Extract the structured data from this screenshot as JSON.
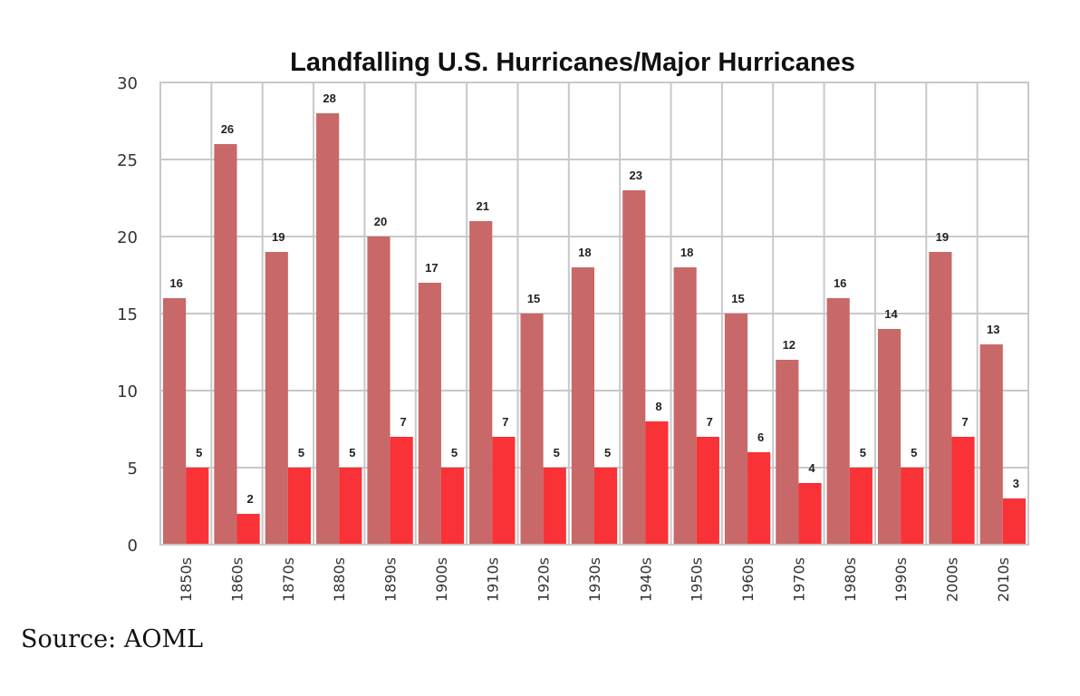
{
  "chart_data": {
    "type": "bar",
    "title": "Landfalling U.S. Hurricanes/Major Hurricanes",
    "xlabel": "",
    "ylabel": "",
    "ylim": [
      0,
      30
    ],
    "yticks": [
      0,
      5,
      10,
      15,
      20,
      25,
      30
    ],
    "grid": true,
    "legend": "none",
    "categories": [
      "1850s",
      "1860s",
      "1870s",
      "1880s",
      "1890s",
      "1900s",
      "1910s",
      "1920s",
      "1930s",
      "1940s",
      "1950s",
      "1960s",
      "1970s",
      "1980s",
      "1990s",
      "2000s",
      "2010s"
    ],
    "series": [
      {
        "name": "Hurricanes",
        "color": "#c86868",
        "values": [
          16,
          26,
          19,
          28,
          20,
          17,
          21,
          15,
          18,
          23,
          18,
          15,
          12,
          16,
          14,
          19,
          13
        ]
      },
      {
        "name": "Major Hurricanes",
        "color": "#f83236",
        "values": [
          5,
          2,
          5,
          5,
          7,
          5,
          7,
          5,
          5,
          8,
          7,
          6,
          4,
          5,
          5,
          7,
          3
        ]
      }
    ]
  },
  "source": "Source: AOML"
}
